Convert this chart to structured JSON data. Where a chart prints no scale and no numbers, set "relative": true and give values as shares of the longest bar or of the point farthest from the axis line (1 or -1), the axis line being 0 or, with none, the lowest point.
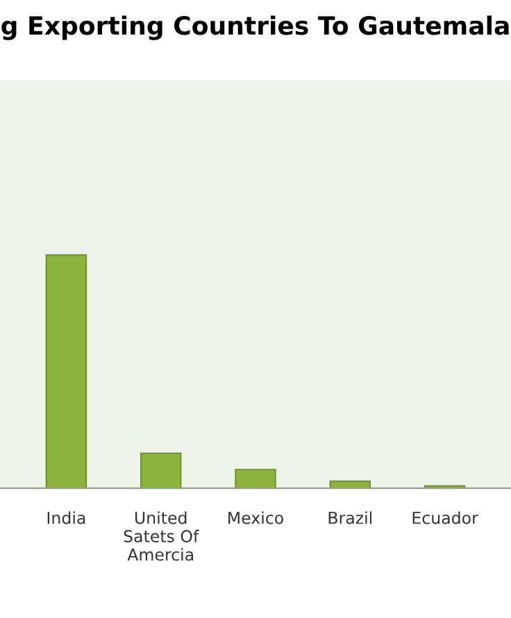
{
  "chart_data": {
    "type": "bar",
    "title": "g Exporting Countries To Gautemala",
    "categories": [
      "India",
      "United Satets Of Amercia",
      "Mexico",
      "Brazil",
      "Ecuador"
    ],
    "values": [
      1,
      0.15,
      0.08,
      0.03,
      0.01
    ],
    "color": "#8db43e",
    "relative": true,
    "grid": false
  }
}
